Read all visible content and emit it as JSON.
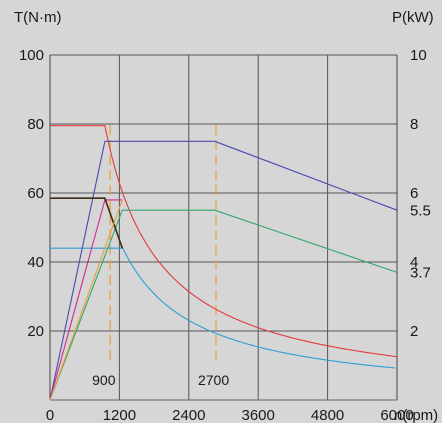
{
  "chart_data": {
    "type": "line",
    "left_axis_label": "T(N·m)",
    "right_axis_label": "P(kW)",
    "xlabel": "n(rpm)",
    "x_ticks": [
      0,
      1200,
      2400,
      3600,
      4800,
      6000
    ],
    "x_tick_labels": [
      "0",
      "1200",
      "2400",
      "3600",
      "4800",
      "6000"
    ],
    "xlim": [
      0,
      6000
    ],
    "left_ticks": [
      20,
      40,
      60,
      80,
      100
    ],
    "left_tick_labels": [
      "20",
      "40",
      "60",
      "80",
      "100"
    ],
    "ylim_left": [
      0,
      100
    ],
    "right_ticks": [
      2,
      3.7,
      4,
      5.5,
      6,
      8,
      10
    ],
    "right_tick_labels": [
      "2",
      "3.7",
      "4",
      "5.5",
      "6",
      "8",
      "10"
    ],
    "ylim_right": [
      0,
      10
    ],
    "grid": true,
    "annotations": [
      {
        "label": "900",
        "x": 900
      },
      {
        "label": "2700",
        "x": 2700
      }
    ],
    "series": [
      {
        "color": "#e03c3c",
        "axis": "left",
        "kind": "torque_hyperbola",
        "flat_value": 79.5,
        "corner_x": 950,
        "power_kw": 7.9,
        "x_end": 6000
      },
      {
        "color": "#2e9fd6",
        "axis": "left",
        "kind": "torque_hyperbola",
        "flat_value": 44,
        "corner_x": 1250,
        "power_kw": 5.8,
        "x_end": 6000
      },
      {
        "color": "#4a4ab0",
        "axis": "right",
        "kind": "power",
        "points": [
          [
            0,
            0
          ],
          [
            950,
            7.5
          ],
          [
            2850,
            7.5
          ],
          [
            6000,
            5.5
          ]
        ]
      },
      {
        "color": "#2ea66a",
        "axis": "right",
        "kind": "power",
        "points": [
          [
            0,
            0
          ],
          [
            1250,
            5.5
          ],
          [
            2850,
            5.5
          ],
          [
            6000,
            3.7
          ]
        ]
      },
      {
        "color": "#d02a8a",
        "axis": "right",
        "kind": "power",
        "points": [
          [
            0,
            0
          ],
          [
            950,
            5.8
          ],
          [
            1250,
            5.8
          ]
        ]
      },
      {
        "color": "#3a2e14",
        "axis": "left",
        "kind": "polyline",
        "points": [
          [
            0,
            58.5
          ],
          [
            950,
            58.5
          ],
          [
            1250,
            44
          ]
        ]
      },
      {
        "color": "#e8a03c",
        "axis": "left",
        "kind": "polyline",
        "dashed": false,
        "points": [
          [
            0,
            0
          ],
          [
            1250,
            58
          ]
        ]
      }
    ],
    "orange_dash_color": "#e8a03c"
  }
}
